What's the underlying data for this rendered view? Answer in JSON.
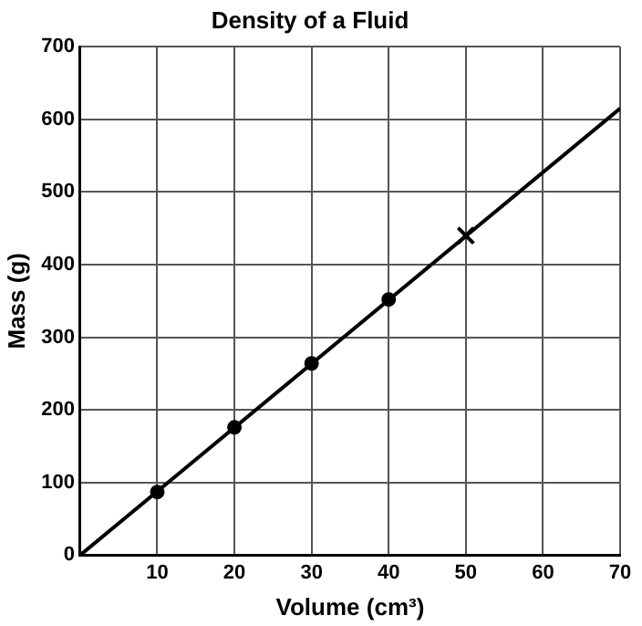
{
  "chart_data": {
    "type": "scatter",
    "title": "Density of a Fluid",
    "xlabel": "Volume (cm³)",
    "ylabel": "Mass (g)",
    "xlim": [
      0,
      70
    ],
    "ylim": [
      0,
      700
    ],
    "xticks": [
      {
        "value": 0,
        "label": null
      },
      10,
      20,
      30,
      40,
      50,
      60,
      70
    ],
    "yticks": [
      0,
      100,
      200,
      300,
      400,
      500,
      600,
      700
    ],
    "grid": true,
    "legend": false,
    "series": [
      {
        "type": "line",
        "color": "#000000",
        "x": [
          0,
          70
        ],
        "values": [
          0,
          615
        ],
        "marker": "none",
        "line_style": "solid"
      },
      {
        "type": "scatter",
        "color": "#000000",
        "x": [
          10,
          20,
          30,
          40
        ],
        "values": [
          87,
          176,
          264,
          352
        ],
        "marker": "circle"
      },
      {
        "type": "scatter",
        "color": "#000000",
        "x": [
          50
        ],
        "values": [
          440
        ],
        "marker": "cross"
      }
    ]
  }
}
